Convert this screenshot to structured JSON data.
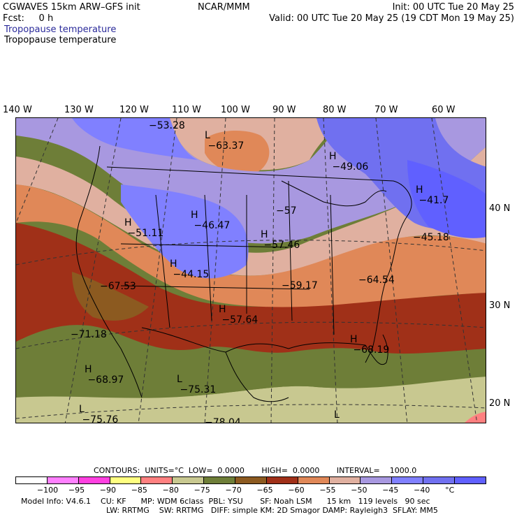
{
  "header": {
    "model_line": "CGWAVES 15km ARW–GFS init",
    "fcst_line": "Fcst:     0 h",
    "field_line1": "Tropopause temperature",
    "field_line2": "Tropopause temperature",
    "org": "NCAR/MMM",
    "init": "Init: 00 UTC Tue 20 May 25",
    "valid": "Valid: 00 UTC Tue 20 May 25 (19 CDT Mon 19 May 25)"
  },
  "lon_labels": [
    "140 W",
    "130 W",
    "120 W",
    "110 W",
    "100 W",
    "90 W",
    "80 W",
    "70 W",
    "60 W"
  ],
  "lat_labels": [
    "40 N",
    "30 N",
    "20 N"
  ],
  "map_labels": [
    {
      "mark": "",
      "value": "−53.28"
    },
    {
      "mark": "L",
      "value": "−63.37"
    },
    {
      "mark": "H",
      "value": "−49.06"
    },
    {
      "mark": "H",
      "value": "−41.7"
    },
    {
      "mark": "",
      "value": "−57"
    },
    {
      "mark": "H",
      "value": "−51.11"
    },
    {
      "mark": "H",
      "value": "−46.47"
    },
    {
      "mark": "H",
      "value": "−57.46"
    },
    {
      "mark": "",
      "value": "−45.18"
    },
    {
      "mark": "H",
      "value": "−44.15"
    },
    {
      "mark": "",
      "value": "−67.53"
    },
    {
      "mark": "",
      "value": "−59.17"
    },
    {
      "mark": "",
      "value": "−64.54"
    },
    {
      "mark": "H",
      "value": "−57.64"
    },
    {
      "mark": "",
      "value": "−71.18"
    },
    {
      "mark": "H",
      "value": "−68.19"
    },
    {
      "mark": "H",
      "value": "−68.97"
    },
    {
      "mark": "L",
      "value": "−75.31"
    },
    {
      "mark": "L",
      "value": "−75.76"
    },
    {
      "mark": "",
      "value": "−78.04"
    },
    {
      "mark": "L",
      "value": ""
    }
  ],
  "contours": "CONTOURS:  UNITS=°C  LOW=  0.0000       HIGH=  0.0000       INTERVAL=    1000.0",
  "colorbar": {
    "colors": [
      "#ffffff",
      "#ff80ff",
      "#ff40e0",
      "#ffff80",
      "#ff8080",
      "#c8c890",
      "#6e7e38",
      "#8c5a20",
      "#a03018",
      "#e08858",
      "#e0b0a0",
      "#a898e0",
      "#8080ff",
      "#7070f0",
      "#6060ff"
    ],
    "labels": [
      "−100",
      "−95",
      "−90",
      "−85",
      "−80",
      "−75",
      "−70",
      "−65",
      "−60",
      "−55",
      "−50",
      "−45",
      "−40",
      "°C"
    ]
  },
  "footer": {
    "line1": "Model Info: V4.6.1    CU: KF      MP: WDM 6class  PBL: YSU       SF: Noah LSM      15 km   119 levels   90 sec",
    "line2": "LW: RRTMG    SW: RRTMG   DIFF: simple KM: 2D Smagor DAMP: Rayleigh3  SFLAY: MM5"
  }
}
